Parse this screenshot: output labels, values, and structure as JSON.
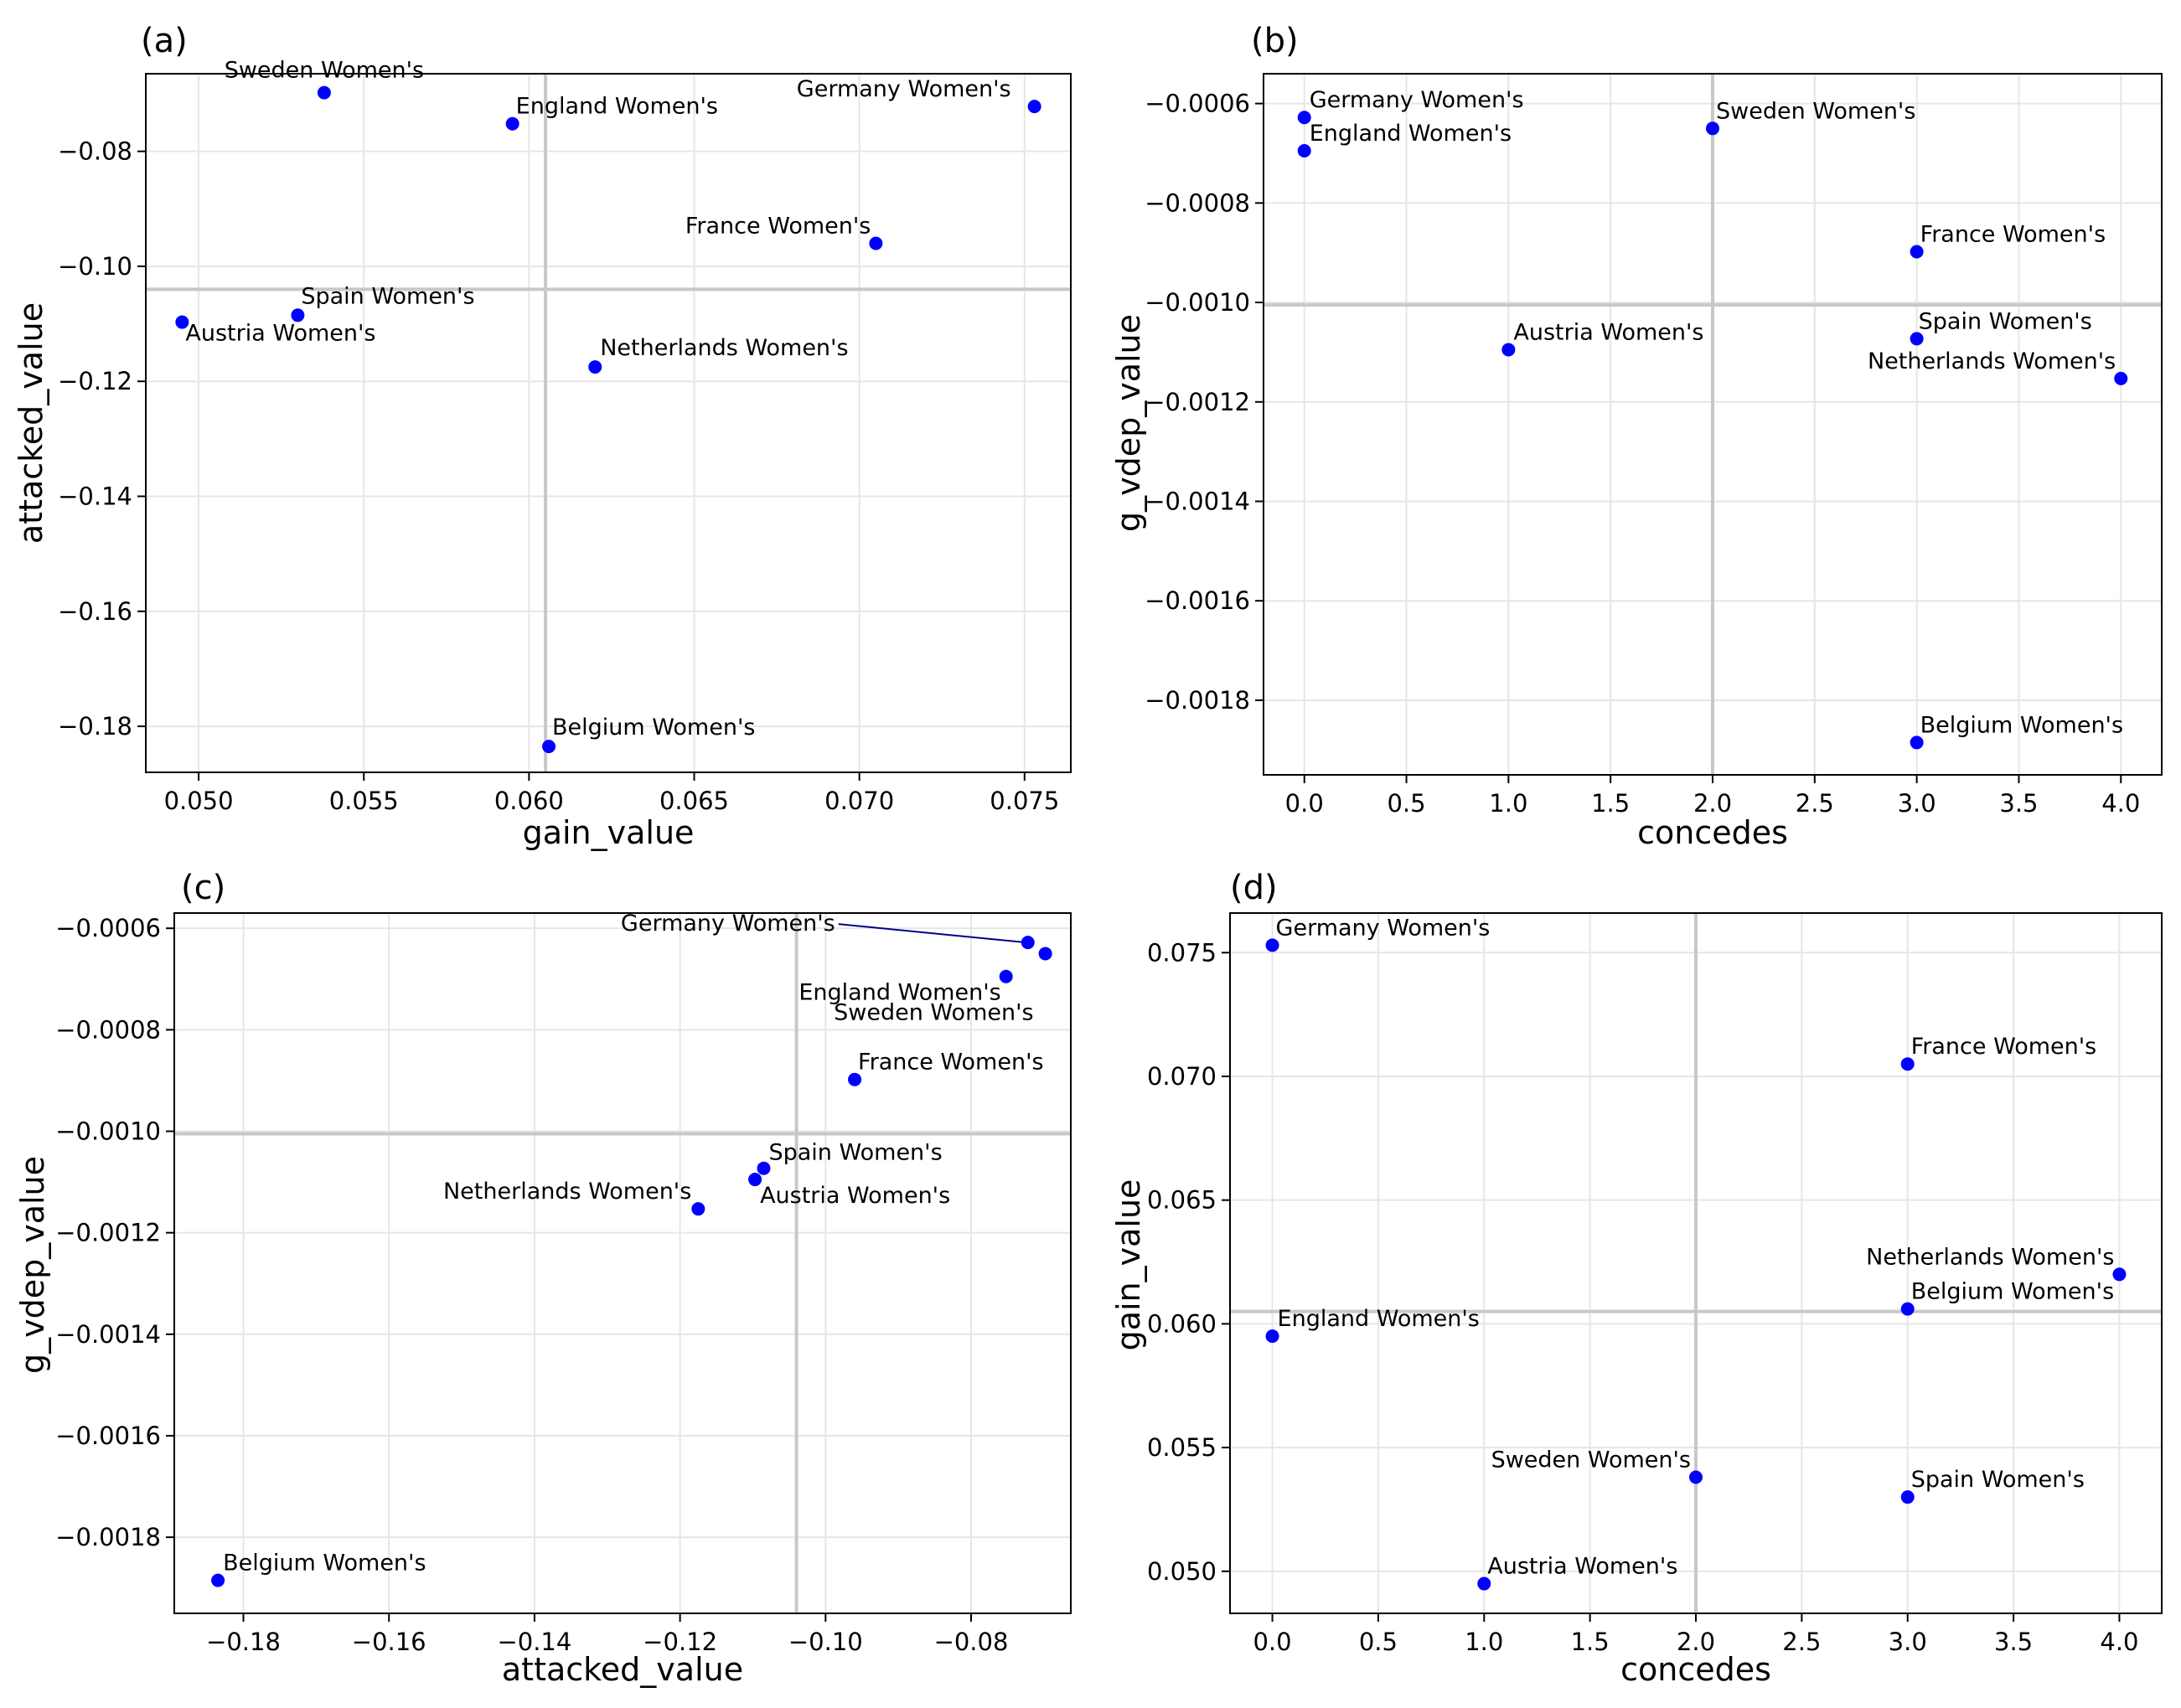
{
  "chart_data": [
    {
      "panel": "(a)",
      "type": "scatter",
      "xlabel": "gain_value",
      "ylabel": "attacked_value",
      "xlim": [
        0.0484,
        0.0764
      ],
      "ylim": [
        -0.188,
        -0.0665
      ],
      "xticks": [
        0.05,
        0.055,
        0.06,
        0.065,
        0.07,
        0.075
      ],
      "xtick_labels": [
        "0.050",
        "0.055",
        "0.060",
        "0.065",
        "0.070",
        "0.075"
      ],
      "yticks": [
        -0.18,
        -0.16,
        -0.14,
        -0.12,
        -0.1,
        -0.08
      ],
      "ytick_labels": [
        "−0.18",
        "−0.16",
        "−0.14",
        "−0.12",
        "−0.10",
        "−0.08"
      ],
      "ref_x": 0.0605,
      "ref_y": -0.104,
      "grid": true,
      "point_color": "#0000ff",
      "points": [
        {
          "label": "Sweden Women's",
          "x": 0.0538,
          "y": -0.0698
        },
        {
          "label": "England Women's",
          "x": 0.0595,
          "y": -0.0752
        },
        {
          "label": "Germany Women's",
          "x": 0.0753,
          "y": -0.0722
        },
        {
          "label": "France Women's",
          "x": 0.0705,
          "y": -0.096
        },
        {
          "label": "Spain Women's",
          "x": 0.053,
          "y": -0.1085
        },
        {
          "label": "Austria Women's",
          "x": 0.0495,
          "y": -0.1097
        },
        {
          "label": "Netherlands Women's",
          "x": 0.062,
          "y": -0.1175
        },
        {
          "label": "Belgium Women's",
          "x": 0.0606,
          "y": -0.1835
        }
      ]
    },
    {
      "panel": "(b)",
      "type": "scatter",
      "xlabel": "concedes",
      "ylabel": "g_vdep_value",
      "xlim": [
        -0.2,
        4.2
      ],
      "ylim": [
        -0.00195,
        -0.00054
      ],
      "xticks": [
        0.0,
        0.5,
        1.0,
        1.5,
        2.0,
        2.5,
        3.0,
        3.5,
        4.0
      ],
      "xtick_labels": [
        "0.0",
        "0.5",
        "1.0",
        "1.5",
        "2.0",
        "2.5",
        "3.0",
        "3.5",
        "4.0"
      ],
      "yticks": [
        -0.0018,
        -0.0016,
        -0.0014,
        -0.0012,
        -0.001,
        -0.0008,
        -0.0006
      ],
      "ytick_labels": [
        "−0.0018",
        "−0.0016",
        "−0.0014",
        "−0.0012",
        "−0.0010",
        "−0.0008",
        "−0.0006"
      ],
      "ref_x": 2.0,
      "ref_y": -0.001005,
      "grid": true,
      "point_color": "#0000ff",
      "points": [
        {
          "label": "Germany Women's",
          "x": 0.0,
          "y": -0.000628
        },
        {
          "label": "England Women's",
          "x": 0.0,
          "y": -0.000695
        },
        {
          "label": "Sweden Women's",
          "x": 2.0,
          "y": -0.00065
        },
        {
          "label": "France Women's",
          "x": 3.0,
          "y": -0.000898
        },
        {
          "label": "Austria Women's",
          "x": 1.0,
          "y": -0.001095
        },
        {
          "label": "Spain Women's",
          "x": 3.0,
          "y": -0.001073
        },
        {
          "label": "Netherlands Women's",
          "x": 4.0,
          "y": -0.001153
        },
        {
          "label": "Belgium Women's",
          "x": 3.0,
          "y": -0.001885
        }
      ]
    },
    {
      "panel": "(c)",
      "type": "scatter",
      "xlabel": "attacked_value",
      "ylabel": "g_vdep_value",
      "xlim": [
        -0.1895,
        -0.0663
      ],
      "ylim": [
        -0.00195,
        -0.00057
      ],
      "xticks": [
        -0.18,
        -0.16,
        -0.14,
        -0.12,
        -0.1,
        -0.08
      ],
      "xtick_labels": [
        "−0.18",
        "−0.16",
        "−0.14",
        "−0.12",
        "−0.10",
        "−0.08"
      ],
      "yticks": [
        -0.0018,
        -0.0016,
        -0.0014,
        -0.0012,
        -0.001,
        -0.0008,
        -0.0006
      ],
      "ytick_labels": [
        "−0.0018",
        "−0.0016",
        "−0.0014",
        "−0.0012",
        "−0.0010",
        "−0.0008",
        "−0.0006"
      ],
      "ref_x": -0.104,
      "ref_y": -0.001005,
      "grid": true,
      "point_color": "#0000ff",
      "points": [
        {
          "label": "Germany Women's",
          "x": -0.0722,
          "y": -0.000628
        },
        {
          "label": "Sweden Women's",
          "x": -0.0698,
          "y": -0.00065
        },
        {
          "label": "England Women's",
          "x": -0.0752,
          "y": -0.000695
        },
        {
          "label": "France Women's",
          "x": -0.096,
          "y": -0.000898
        },
        {
          "label": "Spain Women's",
          "x": -0.1085,
          "y": -0.001073
        },
        {
          "label": "Austria Women's",
          "x": -0.1097,
          "y": -0.001095
        },
        {
          "label": "Netherlands Women's",
          "x": -0.1175,
          "y": -0.001153
        },
        {
          "label": "Belgium Women's",
          "x": -0.1835,
          "y": -0.001885
        }
      ]
    },
    {
      "panel": "(d)",
      "type": "scatter",
      "xlabel": "concedes",
      "ylabel": "gain_value",
      "xlim": [
        -0.2,
        4.2
      ],
      "ylim": [
        0.0483,
        0.0766
      ],
      "xticks": [
        0.0,
        0.5,
        1.0,
        1.5,
        2.0,
        2.5,
        3.0,
        3.5,
        4.0
      ],
      "xtick_labels": [
        "0.0",
        "0.5",
        "1.0",
        "1.5",
        "2.0",
        "2.5",
        "3.0",
        "3.5",
        "4.0"
      ],
      "yticks": [
        0.05,
        0.055,
        0.06,
        0.065,
        0.07,
        0.075
      ],
      "ytick_labels": [
        "0.050",
        "0.055",
        "0.060",
        "0.065",
        "0.070",
        "0.075"
      ],
      "ref_x": 2.0,
      "ref_y": 0.0605,
      "grid": true,
      "point_color": "#0000ff",
      "points": [
        {
          "label": "Germany Women's",
          "x": 0.0,
          "y": 0.0753
        },
        {
          "label": "France Women's",
          "x": 3.0,
          "y": 0.0705
        },
        {
          "label": "Netherlands Women's",
          "x": 4.0,
          "y": 0.062
        },
        {
          "label": "Belgium Women's",
          "x": 3.0,
          "y": 0.0606
        },
        {
          "label": "England Women's",
          "x": 0.0,
          "y": 0.0595
        },
        {
          "label": "Sweden Women's",
          "x": 2.0,
          "y": 0.0538
        },
        {
          "label": "Spain Women's",
          "x": 3.0,
          "y": 0.053
        },
        {
          "label": "Austria Women's",
          "x": 1.0,
          "y": 0.0495
        }
      ]
    }
  ]
}
